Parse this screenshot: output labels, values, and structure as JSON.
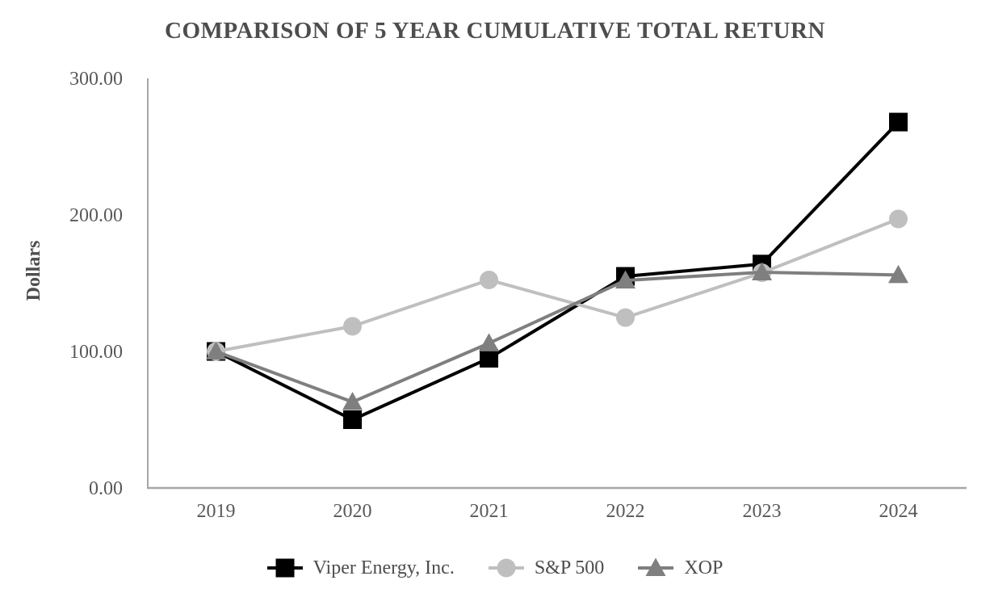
{
  "chart_data": {
    "type": "line",
    "title": "COMPARISON OF 5 YEAR CUMULATIVE TOTAL RETURN",
    "ylabel": "Dollars",
    "xlabel": "",
    "x": [
      "2019",
      "2020",
      "2021",
      "2022",
      "2023",
      "2024"
    ],
    "series": [
      {
        "name": "Viper Energy, Inc.",
        "marker": "square",
        "color": "#000000",
        "values": [
          100.0,
          50.0,
          95.0,
          155.0,
          164.0,
          268.0
        ]
      },
      {
        "name": "S&P 500",
        "marker": "circle",
        "color": "#bfbfbf",
        "values": [
          100.0,
          118.4,
          152.39,
          124.79,
          157.59,
          197.02
        ]
      },
      {
        "name": "XOP",
        "marker": "triangle",
        "color": "#7f7f7f",
        "values": [
          100.0,
          63.0,
          106.0,
          152.0,
          158.0,
          156.0
        ]
      }
    ],
    "ylim": [
      0,
      300
    ],
    "yticks": [
      0,
      100,
      200,
      300
    ],
    "ytick_labels": [
      "0.00",
      "100.00",
      "200.00",
      "300.00"
    ],
    "grid": false,
    "legend_position": "bottom",
    "axis_color": "#a6a6a6",
    "tick_text_color": "#595959",
    "title_color": "#4d4d4d"
  }
}
